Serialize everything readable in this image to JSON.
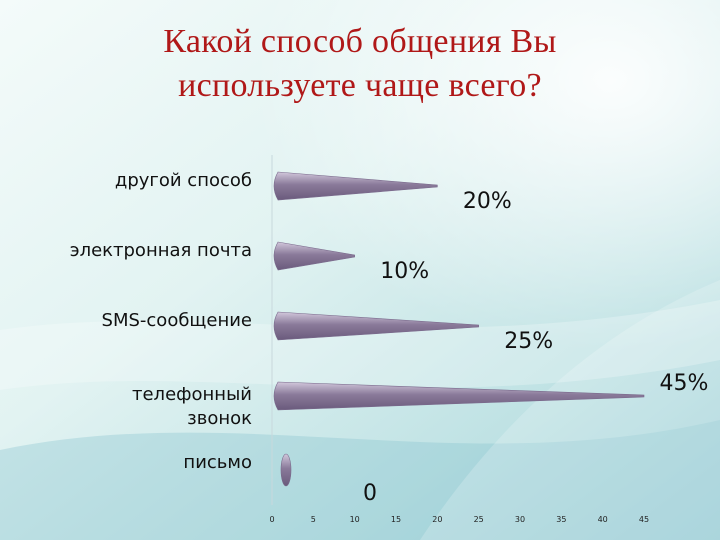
{
  "title_lines": [
    "Какой способ общения Вы",
    "используете чаще всего?"
  ],
  "chart_data": {
    "type": "bar",
    "orientation": "horizontal",
    "title": "Какой способ общения Вы используете чаще всего?",
    "categories": [
      [
        "другой способ"
      ],
      [
        "электронная почта"
      ],
      [
        "SMS-сообщение"
      ],
      [
        "телефонный",
        "звонок"
      ],
      [
        "письмо"
      ]
    ],
    "values": [
      20,
      10,
      25,
      45,
      0
    ],
    "data_labels": [
      "20%",
      "10%",
      "25%",
      "45%",
      "0"
    ],
    "x_ticks": [
      0,
      5,
      10,
      15,
      20,
      25,
      30,
      35,
      40,
      45
    ],
    "xlim": [
      0,
      45
    ],
    "grid": false,
    "legend": "none",
    "colors": {
      "bar": "#8a7a9a",
      "bar_light": "#d2c8dc",
      "label": "#111111",
      "title": "#b01818"
    }
  }
}
